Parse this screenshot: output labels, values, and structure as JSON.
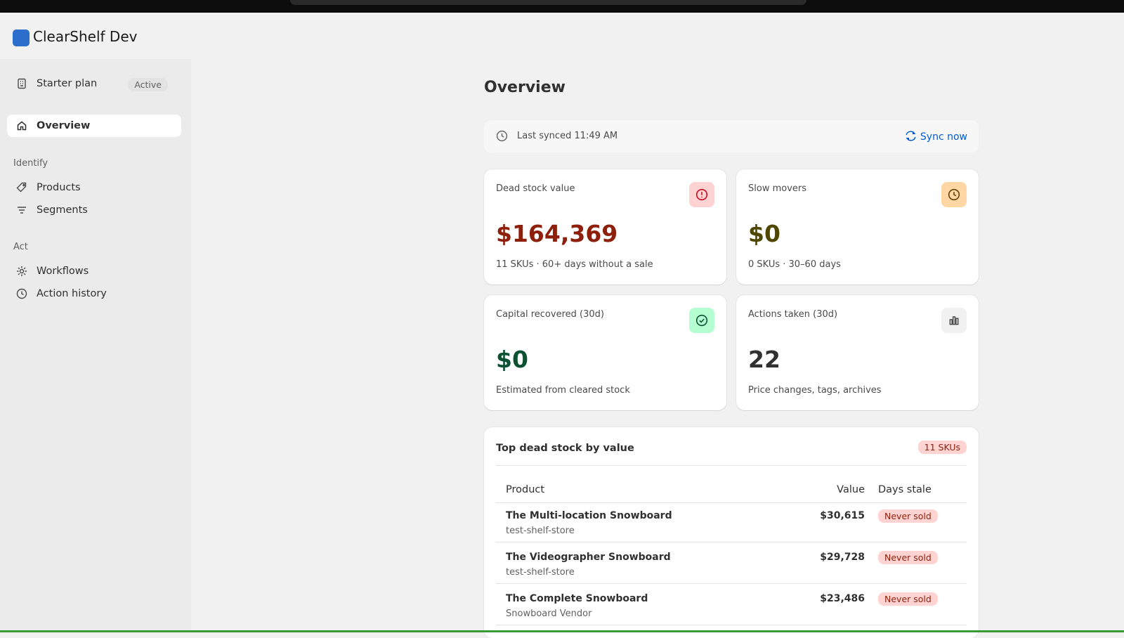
{
  "app": {
    "name": "ClearShelf Dev"
  },
  "sidebar": {
    "plan": {
      "label": "Starter plan",
      "status": "Active"
    },
    "nav": [
      "Overview"
    ],
    "sections": [
      {
        "title": "Identify",
        "items": [
          "Products",
          "Segments"
        ]
      },
      {
        "title": "Act",
        "items": [
          "Workflows",
          "Action history"
        ]
      }
    ]
  },
  "main": {
    "title": "Overview",
    "sync": {
      "status": "Last synced 11:49 AM",
      "action": "Sync now"
    },
    "cards": [
      {
        "label": "Dead stock value",
        "value": "$164,369",
        "note": "11 SKUs · 60+ days without a sale"
      },
      {
        "label": "Slow movers",
        "value": "$0",
        "note": "0 SKUs · 30–60 days"
      },
      {
        "label": "Capital recovered (30d)",
        "value": "$0",
        "note": "Estimated from cleared stock"
      },
      {
        "label": "Actions taken (30d)",
        "value": "22",
        "note": "Price changes, tags, archives"
      }
    ],
    "table": {
      "title": "Top dead stock by value",
      "badge": "11 SKUs",
      "columns": [
        "Product",
        "Value",
        "Days stale"
      ],
      "rows": [
        {
          "product": "The Multi-location Snowboard",
          "vendor": "test-shelf-store",
          "value": "$30,615",
          "days": "Never sold"
        },
        {
          "product": "The Videographer Snowboard",
          "vendor": "test-shelf-store",
          "value": "$29,728",
          "days": "Never sold"
        },
        {
          "product": "The Complete Snowboard",
          "vendor": "Snowboard Vendor",
          "value": "$23,486",
          "days": "Never sold"
        }
      ]
    }
  }
}
